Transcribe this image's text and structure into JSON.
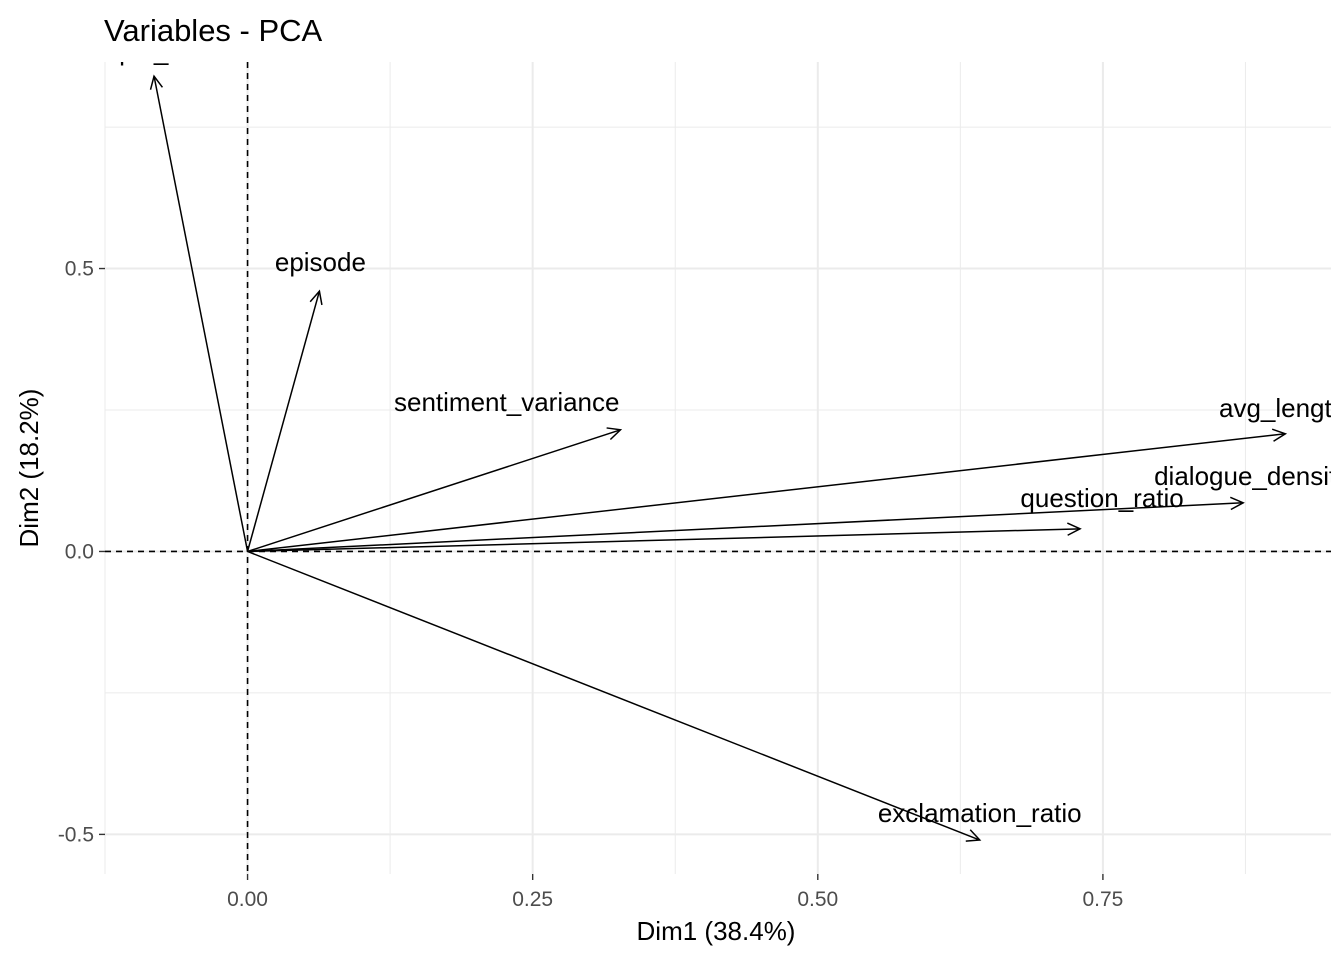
{
  "chart_data": {
    "type": "scatter",
    "subtype": "pca-variable-correlation-arrows",
    "title": "Variables - PCA",
    "xlabel": "Dim1 (38.4%)",
    "ylabel": "Dim2 (18.2%)",
    "xlim": [
      -0.125,
      0.95
    ],
    "ylim": [
      -0.57,
      0.865
    ],
    "x_ticks": [
      0.0,
      0.25,
      0.5,
      0.75
    ],
    "x_tick_labels": [
      "0.00",
      "0.25",
      "0.50",
      "0.75"
    ],
    "y_ticks": [
      -0.5,
      0.0,
      0.5
    ],
    "y_tick_labels": [
      "-0.5",
      "0.0",
      "0.5"
    ],
    "grid": true,
    "reference_lines": "dashed lines at x = 0 and y = 0",
    "arrows_from_origin": true,
    "variables": [
      {
        "name": "que_words",
        "label": "que_words",
        "x": -0.082,
        "y": 0.84
      },
      {
        "name": "episode",
        "label": "episode",
        "x": 0.063,
        "y": 0.46
      },
      {
        "name": "sentiment_variance",
        "label": "sentiment_variance",
        "x": 0.327,
        "y": 0.215
      },
      {
        "name": "avg_length",
        "label": "avg_lengt",
        "x": 0.91,
        "y": 0.208
      },
      {
        "name": "dialogue_density",
        "label": "dialogue_densit",
        "x": 0.873,
        "y": 0.086
      },
      {
        "name": "question_ratio",
        "label": "question_ratio",
        "x": 0.73,
        "y": 0.04
      },
      {
        "name": "exclamation_ratio",
        "label": "exclamation_ratio",
        "x": 0.642,
        "y": -0.51
      }
    ],
    "colors": {
      "arrow": "#000000",
      "grid": "#ebebeb",
      "text": "#000000",
      "tick_text": "#4d4d4d"
    }
  }
}
